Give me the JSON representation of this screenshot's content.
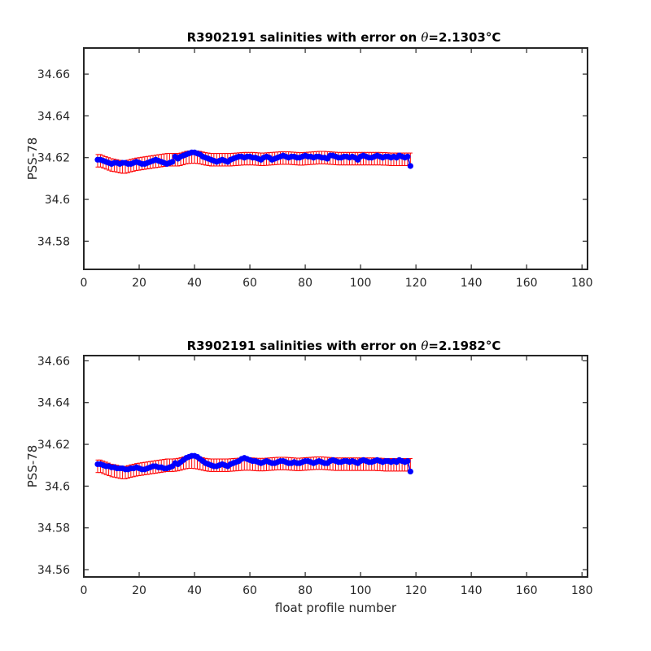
{
  "chart_data": [
    {
      "type": "scatter",
      "title_prefix": "R3902191 salinities with error on ",
      "theta_symbol": "θ",
      "title_value": "=2.1303",
      "title_unit": "°C",
      "xlabel": "",
      "ylabel": "PSS-78",
      "xlim": [
        0,
        182
      ],
      "ylim": [
        34.5665,
        34.6725
      ],
      "xticks": [
        0,
        20,
        40,
        60,
        80,
        100,
        120,
        140,
        160,
        180
      ],
      "yticks": [
        34.58,
        34.6,
        34.62,
        34.64,
        34.66
      ],
      "ytick_labels": [
        "34.58",
        "34.6",
        "34.62",
        "34.64",
        "34.66"
      ],
      "series": [
        {
          "x_start": 5,
          "values": [
            34.619,
            34.619,
            34.6185,
            34.618,
            34.6175,
            34.617,
            34.6175,
            34.6175,
            34.617,
            34.6175,
            34.6175,
            34.617,
            34.617,
            34.6175,
            34.618,
            34.6175,
            34.617,
            34.617,
            34.6175,
            34.618,
            34.6185,
            34.619,
            34.6185,
            34.618,
            34.6175,
            34.617,
            34.6175,
            34.618,
            34.6205,
            34.6195,
            34.6205,
            34.621,
            34.6215,
            34.622,
            34.6225,
            34.6225,
            34.622,
            34.6215,
            34.6205,
            34.62,
            34.6195,
            34.619,
            34.6185,
            34.618,
            34.6185,
            34.619,
            34.6185,
            34.618,
            34.619,
            34.6195,
            34.62,
            34.6205,
            34.6205,
            34.62,
            34.6205,
            34.6205,
            34.62,
            34.62,
            34.6195,
            34.619,
            34.62,
            34.6205,
            34.62,
            34.619,
            34.6195,
            34.62,
            34.6205,
            34.621,
            34.6205,
            34.62,
            34.6205,
            34.6205,
            34.62,
            34.62,
            34.6205,
            34.621,
            34.6205,
            34.6205,
            34.62,
            34.6205,
            34.6205,
            34.62,
            34.62,
            34.6195,
            34.621,
            34.621,
            34.6205,
            34.62,
            34.62,
            34.6205,
            34.6205,
            34.62,
            34.6205,
            34.62,
            34.619,
            34.6205,
            34.621,
            34.6205,
            34.62,
            34.62,
            34.6205,
            34.621,
            34.6205,
            34.62,
            34.6205,
            34.6205,
            34.62,
            34.6205,
            34.62,
            34.621,
            34.6205,
            34.62,
            34.6205,
            34.616
          ],
          "error_center": [
            34.6185,
            34.6185,
            34.618,
            34.6175,
            34.617,
            34.6165,
            34.6163,
            34.616,
            34.6157,
            34.6155,
            34.6155,
            34.6158,
            34.6162,
            34.6165,
            34.6168,
            34.617,
            34.6172,
            34.6174,
            34.6176,
            34.6178,
            34.618,
            34.6182,
            34.6184,
            34.6186,
            34.6188,
            34.619,
            34.619,
            34.619,
            34.619,
            34.619,
            34.6192,
            34.6196,
            34.62,
            34.6202,
            34.6203,
            34.6203,
            34.6202,
            34.62,
            34.6197,
            34.6194,
            34.6192,
            34.619,
            34.619,
            34.619,
            34.619,
            34.619,
            34.619,
            34.619,
            34.619,
            34.6191,
            34.6192,
            34.6193,
            34.6194,
            34.6195,
            34.6195,
            34.6195,
            34.6195,
            34.6194,
            34.6193,
            34.6192,
            34.6192,
            34.6193,
            34.6194,
            34.6195,
            34.6196,
            34.6197,
            34.6198,
            34.6198,
            34.6198,
            34.6198,
            34.6197,
            34.6196,
            34.6195,
            34.6194,
            34.6194,
            34.6195,
            34.6196,
            34.6197,
            34.6198,
            34.6199,
            34.62,
            34.62,
            34.62,
            34.6199,
            34.6198,
            34.6197,
            34.6196,
            34.6195,
            34.6195,
            34.6195,
            34.6195,
            34.6195,
            34.6195,
            34.6195,
            34.6195,
            34.6195,
            34.6195,
            34.6195,
            34.6195,
            34.6195,
            34.6195,
            34.6195,
            34.6195,
            34.6194,
            34.6194,
            34.6193,
            34.6192,
            34.6192,
            34.6192,
            34.6192,
            34.6192,
            34.6192,
            34.6192,
            34.6192
          ],
          "error_halfwidth": 0.003
        }
      ],
      "marker_color": "#0000ff",
      "error_color": "#ff0000"
    },
    {
      "type": "scatter",
      "title_prefix": "R3902191 salinities with error on ",
      "theta_symbol": "θ",
      "title_value": "=2.1982",
      "title_unit": "°C",
      "xlabel": "float profile number",
      "ylabel": "PSS-78",
      "xlim": [
        0,
        182
      ],
      "ylim": [
        34.5565,
        34.6625
      ],
      "xticks": [
        0,
        20,
        40,
        60,
        80,
        100,
        120,
        140,
        160,
        180
      ],
      "yticks": [
        34.56,
        34.58,
        34.6,
        34.62,
        34.64,
        34.66
      ],
      "ytick_labels": [
        "34.56",
        "34.58",
        "34.6",
        "34.62",
        "34.64",
        "34.66"
      ],
      "series": [
        {
          "x_start": 5,
          "values": [
            34.6105,
            34.6105,
            34.61,
            34.6095,
            34.6095,
            34.609,
            34.609,
            34.6085,
            34.6085,
            34.6085,
            34.608,
            34.608,
            34.6085,
            34.6085,
            34.609,
            34.6085,
            34.608,
            34.608,
            34.6085,
            34.609,
            34.6095,
            34.6095,
            34.609,
            34.609,
            34.6085,
            34.6085,
            34.609,
            34.6095,
            34.611,
            34.6105,
            34.6115,
            34.6125,
            34.6135,
            34.614,
            34.6145,
            34.6145,
            34.614,
            34.613,
            34.612,
            34.611,
            34.6105,
            34.61,
            34.6095,
            34.6095,
            34.61,
            34.6105,
            34.61,
            34.6095,
            34.6105,
            34.611,
            34.6115,
            34.612,
            34.613,
            34.6135,
            34.613,
            34.6125,
            34.612,
            34.612,
            34.6115,
            34.611,
            34.6115,
            34.612,
            34.6115,
            34.611,
            34.611,
            34.6115,
            34.612,
            34.612,
            34.6115,
            34.611,
            34.611,
            34.6115,
            34.611,
            34.611,
            34.6115,
            34.612,
            34.612,
            34.6115,
            34.611,
            34.6115,
            34.612,
            34.6115,
            34.611,
            34.611,
            34.612,
            34.6125,
            34.612,
            34.6115,
            34.6115,
            34.612,
            34.612,
            34.6115,
            34.612,
            34.6115,
            34.611,
            34.612,
            34.6125,
            34.612,
            34.6115,
            34.6115,
            34.612,
            34.6125,
            34.612,
            34.6115,
            34.612,
            34.612,
            34.6115,
            34.612,
            34.6115,
            34.6125,
            34.612,
            34.6115,
            34.612,
            34.607
          ],
          "error_center": [
            34.6095,
            34.6095,
            34.609,
            34.6085,
            34.608,
            34.6075,
            34.6073,
            34.607,
            34.6067,
            34.6065,
            34.6065,
            34.6068,
            34.6072,
            34.6075,
            34.6078,
            34.608,
            34.6082,
            34.6084,
            34.6086,
            34.6088,
            34.609,
            34.6092,
            34.6094,
            34.6096,
            34.6098,
            34.61,
            34.61,
            34.61,
            34.6101,
            34.6103,
            34.6106,
            34.611,
            34.6113,
            34.6115,
            34.6115,
            34.6114,
            34.6112,
            34.6109,
            34.6106,
            34.6103,
            34.6101,
            34.61,
            34.61,
            34.61,
            34.61,
            34.61,
            34.61,
            34.61,
            34.6101,
            34.6102,
            34.6103,
            34.6104,
            34.6105,
            34.6106,
            34.6106,
            34.6106,
            34.6105,
            34.6104,
            34.6103,
            34.6103,
            34.6103,
            34.6104,
            34.6105,
            34.6106,
            34.6107,
            34.6108,
            34.6108,
            34.6108,
            34.6108,
            34.6107,
            34.6106,
            34.6105,
            34.6104,
            34.6104,
            34.6105,
            34.6106,
            34.6107,
            34.6108,
            34.6109,
            34.611,
            34.611,
            34.611,
            34.6109,
            34.6108,
            34.6107,
            34.6106,
            34.6105,
            34.6105,
            34.6105,
            34.6105,
            34.6105,
            34.6105,
            34.6105,
            34.6105,
            34.6105,
            34.6105,
            34.6105,
            34.6105,
            34.6105,
            34.6105,
            34.6105,
            34.6104,
            34.6104,
            34.6103,
            34.6102,
            34.6102,
            34.6102,
            34.6102,
            34.6102,
            34.6102,
            34.6102,
            34.6102,
            34.6102,
            34.6102
          ],
          "error_halfwidth": 0.003
        }
      ],
      "marker_color": "#0000ff",
      "error_color": "#ff0000"
    }
  ]
}
